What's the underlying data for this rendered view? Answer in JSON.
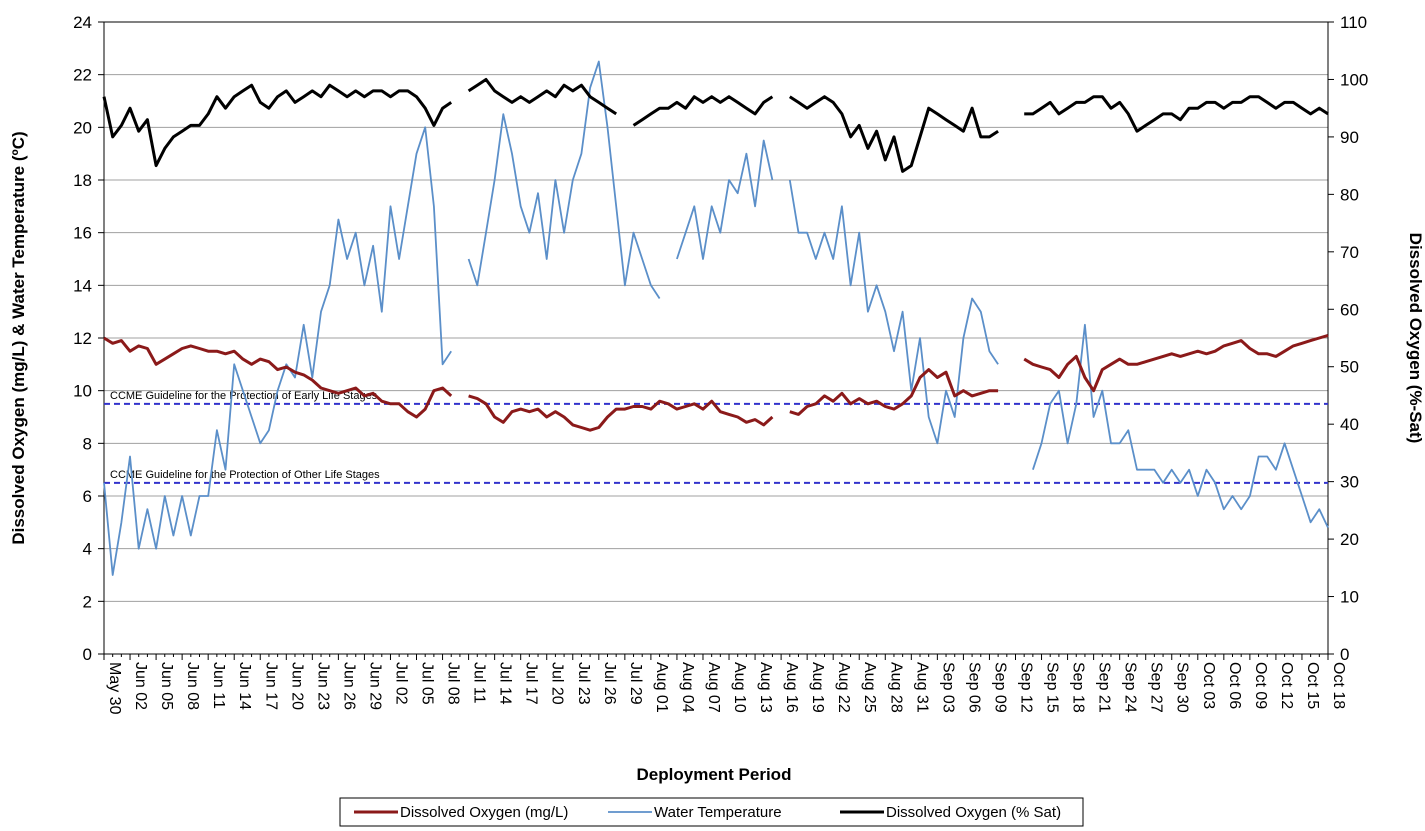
{
  "chart_data": {
    "type": "line",
    "xlabel": "Deployment Period",
    "ylabel": "Dissolved Oxygen (mg/L) & Water Temperature (ºC)",
    "y2label": "Dissolved Oxygen (%-Sat)",
    "categories": [
      "May 30",
      null,
      null,
      "Jun 02",
      null,
      null,
      "Jun 05",
      null,
      null,
      "Jun 08",
      null,
      null,
      "Jun 11",
      null,
      null,
      "Jun 14",
      null,
      null,
      "Jun 17",
      null,
      null,
      "Jun 20",
      null,
      null,
      "Jun 23",
      null,
      null,
      "Jun 26",
      null,
      null,
      "Jun 29",
      null,
      null,
      "Jul 02",
      null,
      null,
      "Jul 05",
      null,
      null,
      "Jul 08",
      null,
      null,
      "Jul 11",
      null,
      null,
      "Jul 14",
      null,
      null,
      "Jul 17",
      null,
      null,
      "Jul 20",
      null,
      null,
      "Jul 23",
      null,
      null,
      "Jul 26",
      null,
      null,
      "Jul 29",
      null,
      null,
      "Aug 01",
      null,
      null,
      "Aug 04",
      null,
      null,
      "Aug 07",
      null,
      null,
      "Aug 10",
      null,
      null,
      "Aug 13",
      null,
      null,
      "Aug 16",
      null,
      null,
      "Aug 19",
      null,
      null,
      "Aug 22",
      null,
      null,
      "Aug 25",
      null,
      null,
      "Aug 28",
      null,
      null,
      "Aug 31",
      null,
      null,
      "Sep 03",
      null,
      null,
      "Sep 06",
      null,
      null,
      "Sep 09",
      null,
      null,
      "Sep 12",
      null,
      null,
      "Sep 15",
      null,
      null,
      "Sep 18",
      null,
      null,
      "Sep 21",
      null,
      null,
      "Sep 24",
      null,
      null,
      "Sep 27",
      null,
      null,
      "Sep 30",
      null,
      null,
      "Oct 03",
      null,
      null,
      "Oct 06",
      null,
      null,
      "Oct 09",
      null,
      null,
      "Oct 12",
      null,
      null,
      "Oct 15",
      null,
      null,
      "Oct 18"
    ],
    "series": [
      {
        "name": "Dissolved Oxygen (mg/L)",
        "color": "#8b1a1a",
        "width": 3,
        "axis": "y",
        "values": [
          12,
          11.8,
          11.9,
          11.5,
          11.7,
          11.6,
          11,
          11.2,
          11.4,
          11.6,
          11.7,
          11.6,
          11.5,
          11.5,
          11.4,
          11.5,
          11.2,
          11.0,
          11.2,
          11.1,
          10.8,
          10.9,
          10.7,
          10.6,
          10.4,
          10.1,
          10.0,
          9.9,
          10.0,
          10.1,
          9.8,
          9.9,
          9.6,
          9.5,
          9.5,
          9.2,
          9.0,
          9.3,
          10.0,
          10.1,
          9.8,
          null,
          9.8,
          9.7,
          9.5,
          9.0,
          8.8,
          9.2,
          9.3,
          9.2,
          9.3,
          9.0,
          9.2,
          9.0,
          8.7,
          8.6,
          8.5,
          8.6,
          9.0,
          9.3,
          9.3,
          9.4,
          9.4,
          9.3,
          9.6,
          9.5,
          9.3,
          9.4,
          9.5,
          9.3,
          9.6,
          9.2,
          9.1,
          9.0,
          8.8,
          8.9,
          8.7,
          9.0,
          null,
          9.2,
          9.1,
          9.4,
          9.5,
          9.8,
          9.6,
          9.9,
          9.5,
          9.7,
          9.5,
          9.6,
          9.4,
          9.3,
          9.5,
          9.8,
          10.5,
          10.8,
          10.5,
          10.7,
          9.8,
          10.0,
          9.8,
          9.9,
          10.0,
          10.0,
          null,
          null,
          11.2,
          11.0,
          10.9,
          10.8,
          10.5,
          11.0,
          11.3,
          10.5,
          10.0,
          10.8,
          11.0,
          11.2,
          11.0,
          11.0,
          11.1,
          11.2,
          11.3,
          11.4,
          11.3,
          11.4,
          11.5,
          11.4,
          11.5,
          11.7,
          11.8,
          11.9,
          11.6,
          11.4,
          11.4,
          11.3,
          11.5,
          11.7,
          11.8,
          11.9,
          12.0,
          12.1
        ]
      },
      {
        "name": "Water Temperature",
        "color": "#5b8fc9",
        "width": 1.8,
        "axis": "y",
        "values": [
          6.5,
          3,
          5,
          7.5,
          4,
          5.5,
          4,
          6,
          4.5,
          6,
          4.5,
          6,
          6,
          8.5,
          7,
          11,
          10,
          9,
          8,
          8.5,
          10,
          11,
          10.5,
          12.5,
          10.5,
          13,
          14,
          16.5,
          15,
          16,
          14,
          15.5,
          13,
          17,
          15,
          17,
          19,
          20,
          17,
          11,
          11.5,
          null,
          15,
          14,
          16,
          18,
          20.5,
          19,
          17,
          16,
          17.5,
          15,
          18,
          16,
          18,
          19,
          21.5,
          22.5,
          20,
          17,
          14,
          16,
          15,
          14,
          13.5,
          null,
          15,
          16,
          17,
          15,
          17,
          16,
          18,
          17.5,
          19,
          17,
          19.5,
          18,
          null,
          18,
          16,
          16,
          15,
          16,
          15,
          17,
          14,
          16,
          13,
          14,
          13,
          11.5,
          13,
          10,
          12,
          9,
          8,
          10,
          9,
          12,
          13.5,
          13,
          11.5,
          11,
          null,
          null,
          null,
          7,
          8,
          9.5,
          10,
          8,
          9.5,
          12.5,
          9,
          10,
          8,
          8,
          8.5,
          7,
          7,
          7,
          6.5,
          7,
          6.5,
          7,
          6,
          7,
          6.5,
          5.5,
          6,
          5.5,
          6,
          7.5,
          7.5,
          7,
          8,
          7,
          6,
          5,
          5.5,
          4.8
        ]
      },
      {
        "name": "Dissolved Oxygen (% Sat)",
        "color": "#000000",
        "width": 3,
        "axis": "y2",
        "values": [
          97,
          90,
          92,
          95,
          91,
          93,
          85,
          88,
          90,
          91,
          92,
          92,
          94,
          97,
          95,
          97,
          98,
          99,
          96,
          95,
          97,
          98,
          96,
          97,
          98,
          97,
          99,
          98,
          97,
          98,
          97,
          98,
          98,
          97,
          98,
          98,
          97,
          95,
          92,
          95,
          96,
          null,
          98,
          99,
          100,
          98,
          97,
          96,
          97,
          96,
          97,
          98,
          97,
          99,
          98,
          99,
          97,
          96,
          95,
          94,
          null,
          92,
          93,
          94,
          95,
          95,
          96,
          95,
          97,
          96,
          97,
          96,
          97,
          96,
          95,
          94,
          96,
          97,
          null,
          97,
          96,
          95,
          96,
          97,
          96,
          94,
          90,
          92,
          88,
          91,
          86,
          90,
          84,
          85,
          90,
          95,
          94,
          93,
          92,
          91,
          95,
          90,
          90,
          91,
          null,
          null,
          94,
          94,
          95,
          96,
          94,
          95,
          96,
          96,
          97,
          97,
          95,
          96,
          94,
          91,
          92,
          93,
          94,
          94,
          93,
          95,
          95,
          96,
          96,
          95,
          96,
          96,
          97,
          97,
          96,
          95,
          96,
          96,
          95,
          94,
          95,
          94
        ]
      }
    ],
    "reference_lines": [
      {
        "label": "CCME Guideline for the Protection of Early Life Stages",
        "value": 9.5,
        "color": "#3333cc"
      },
      {
        "label": "CCME Guideline for the Protection of Other Life Stages",
        "value": 6.5,
        "color": "#3333cc"
      }
    ],
    "ylim": [
      0,
      24
    ],
    "yticks": [
      0,
      2,
      4,
      6,
      8,
      10,
      12,
      14,
      16,
      18,
      20,
      22,
      24
    ],
    "y2lim": [
      0,
      110
    ],
    "y2ticks": [
      0,
      10,
      20,
      30,
      40,
      50,
      60,
      70,
      80,
      90,
      100,
      110
    ],
    "grid": true,
    "legend": "bottom"
  }
}
